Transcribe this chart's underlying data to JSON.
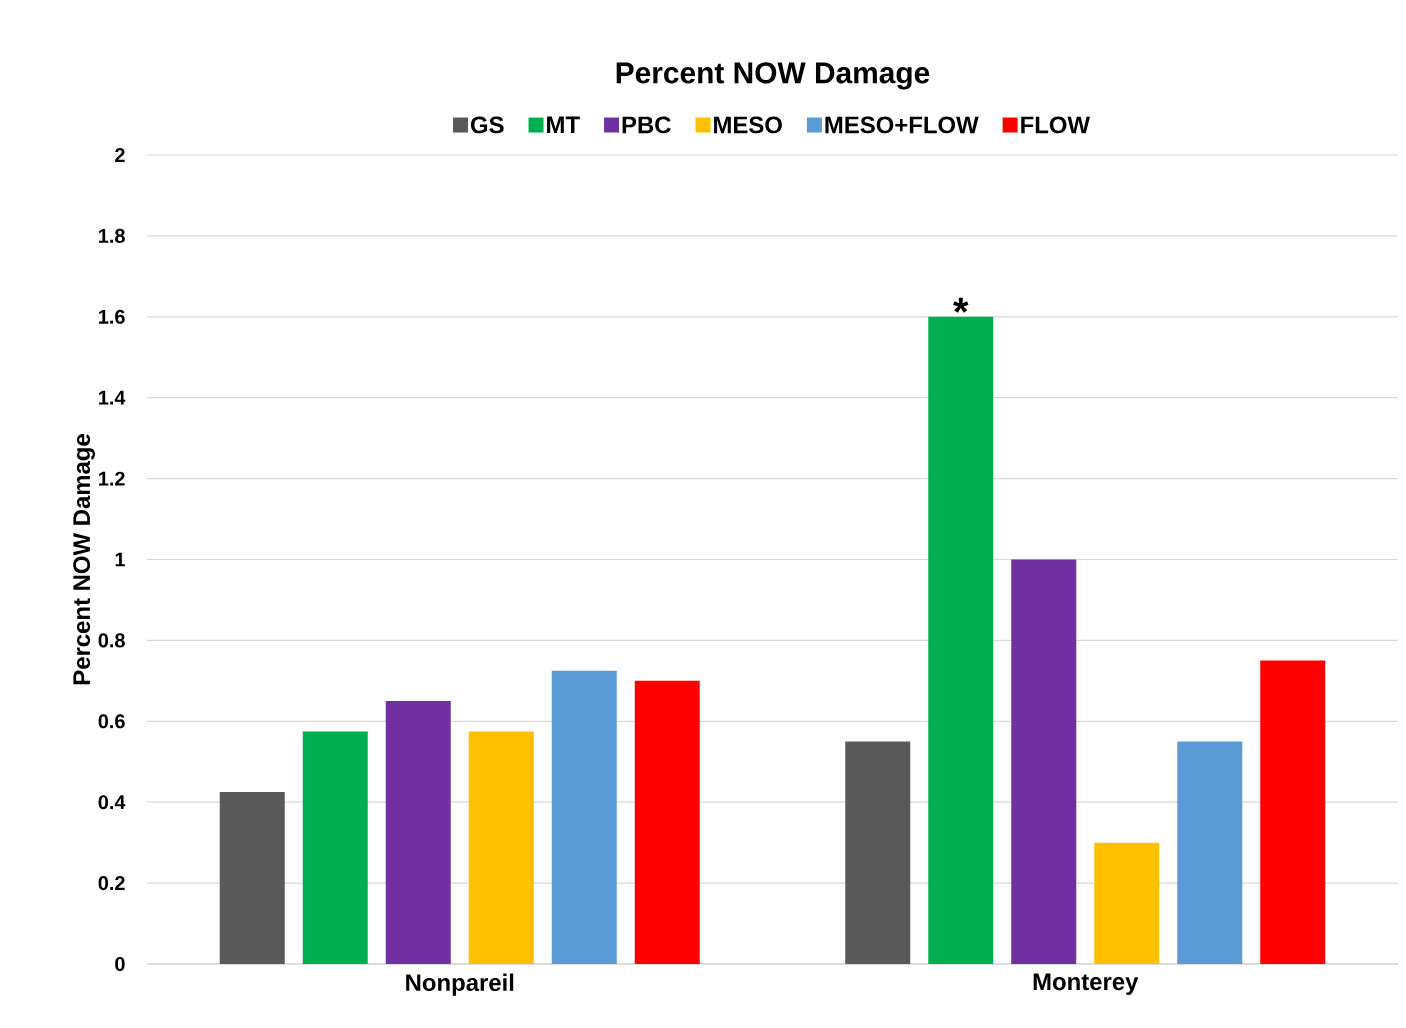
{
  "chart_data": {
    "type": "bar",
    "title": "Percent NOW Damage",
    "ylabel": "Percent NOW Damage",
    "categories": [
      "Nonpareil",
      "Monterey"
    ],
    "series": [
      {
        "name": "GS",
        "color": "#595959",
        "values": [
          0.425,
          0.55
        ]
      },
      {
        "name": "MT",
        "color": "#00b050",
        "values": [
          0.575,
          1.6
        ]
      },
      {
        "name": "PBC",
        "color": "#7030a0",
        "values": [
          0.65,
          1.0
        ]
      },
      {
        "name": "MESO",
        "color": "#ffc000",
        "values": [
          0.575,
          0.3
        ]
      },
      {
        "name": "MESO+FLOW",
        "color": "#5b9bd5",
        "values": [
          0.725,
          0.55
        ]
      },
      {
        "name": "FLOW",
        "color": "#ff0000",
        "values": [
          0.7,
          0.75
        ]
      }
    ],
    "ylim": [
      0,
      2
    ],
    "yticks": [
      0,
      0.2,
      0.4,
      0.6,
      0.8,
      1,
      1.2,
      1.4,
      1.6,
      1.8,
      2
    ],
    "grid": "y",
    "legend": "top",
    "annotations": [
      "*"
    ]
  }
}
